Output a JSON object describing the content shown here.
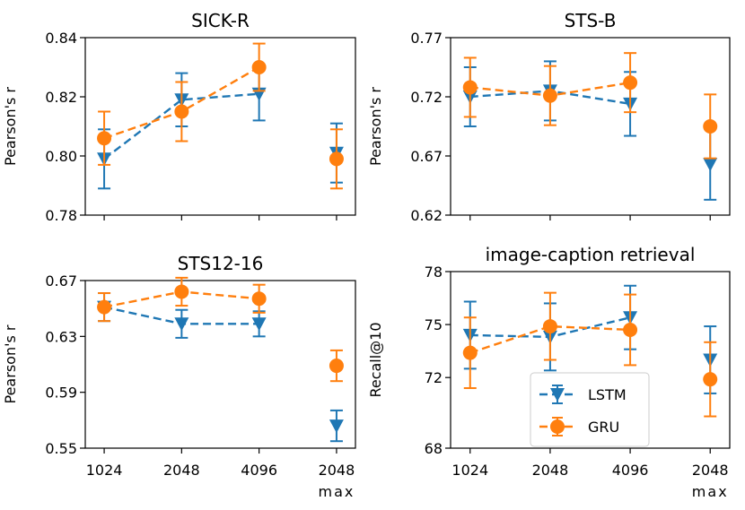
{
  "colors": {
    "lstm": "#1f77b4",
    "gru": "#ff7f0e"
  },
  "chart_data": [
    {
      "type": "line",
      "title": "SICK-R",
      "ylabel": "Pearson's r",
      "ylim": [
        0.78,
        0.84
      ],
      "yticks": [
        "0.78",
        "0.80",
        "0.82",
        "0.84"
      ],
      "xticks": [
        "1024",
        "2048",
        "4096",
        "2048"
      ],
      "xsublabel": "max",
      "show_xticklabels": false,
      "series": [
        {
          "name": "LSTM",
          "values": [
            0.799,
            0.819,
            0.821
          ],
          "errors": [
            0.01,
            0.009,
            0.009
          ],
          "max_value": 0.801,
          "max_error": 0.01
        },
        {
          "name": "GRU",
          "values": [
            0.806,
            0.815,
            0.83
          ],
          "errors": [
            0.009,
            0.01,
            0.008
          ],
          "max_value": 0.799,
          "max_error": 0.01
        }
      ]
    },
    {
      "type": "line",
      "title": "STS-B",
      "ylabel": "Pearson's r",
      "ylim": [
        0.62,
        0.77
      ],
      "yticks": [
        "0.62",
        "0.67",
        "0.72",
        "0.77"
      ],
      "xticks": [
        "1024",
        "2048",
        "4096",
        "2048"
      ],
      "xsublabel": "max",
      "show_xticklabels": false,
      "series": [
        {
          "name": "LSTM",
          "values": [
            0.72,
            0.725,
            0.714
          ],
          "errors": [
            0.025,
            0.025,
            0.027
          ],
          "max_value": 0.663,
          "max_error": 0.03
        },
        {
          "name": "GRU",
          "values": [
            0.728,
            0.721,
            0.732
          ],
          "errors": [
            0.025,
            0.025,
            0.025
          ],
          "max_value": 0.695,
          "max_error": 0.027
        }
      ]
    },
    {
      "type": "line",
      "title": "STS12-16",
      "ylabel": "Pearson's r",
      "ylim": [
        0.55,
        0.67
      ],
      "yticks": [
        "0.55",
        "0.59",
        "0.63",
        "0.67"
      ],
      "xticks": [
        "1024",
        "2048",
        "4096",
        "2048"
      ],
      "xsublabel": "max",
      "show_xticklabels": true,
      "series": [
        {
          "name": "LSTM",
          "values": [
            0.651,
            0.639,
            0.639
          ],
          "errors": [
            0.01,
            0.01,
            0.009
          ],
          "max_value": 0.566,
          "max_error": 0.011
        },
        {
          "name": "GRU",
          "values": [
            0.651,
            0.662,
            0.657
          ],
          "errors": [
            0.01,
            0.01,
            0.01
          ],
          "max_value": 0.609,
          "max_error": 0.011
        }
      ]
    },
    {
      "type": "line",
      "title": "image-caption retrieval",
      "ylabel": "Recall@10",
      "ylim": [
        68,
        78
      ],
      "yticks": [
        "68",
        "72",
        "75",
        "78"
      ],
      "yticks_values": [
        68,
        72,
        75,
        78
      ],
      "xticks": [
        "1024",
        "2048",
        "4096",
        "2048"
      ],
      "xsublabel": "max",
      "show_xticklabels": true,
      "legend": {
        "position": "lower-right",
        "entries": [
          "LSTM",
          "GRU"
        ]
      },
      "series": [
        {
          "name": "LSTM",
          "values": [
            74.4,
            74.3,
            75.4
          ],
          "errors": [
            1.9,
            1.9,
            1.8
          ],
          "max_value": 73.0,
          "max_error": 1.9
        },
        {
          "name": "GRU",
          "values": [
            73.4,
            74.9,
            74.7
          ],
          "errors": [
            2.0,
            1.9,
            2.0
          ],
          "max_value": 71.9,
          "max_error": 2.1
        }
      ]
    }
  ]
}
